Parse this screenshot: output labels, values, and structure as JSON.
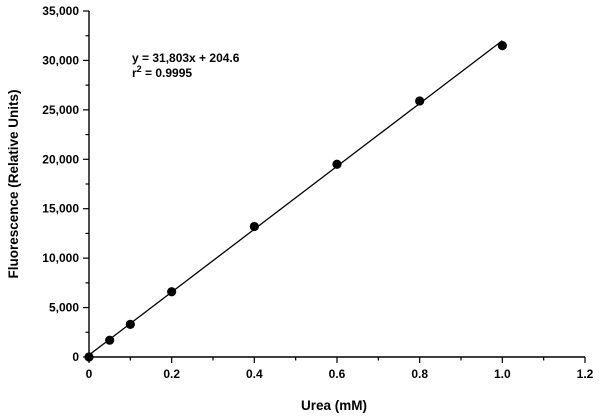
{
  "chart_data": {
    "type": "scatter",
    "title": "",
    "xlabel": "Urea (mM)",
    "ylabel": "Fluorescence (Relative Units)",
    "xlim": [
      0,
      1.2
    ],
    "ylim": [
      0,
      35000
    ],
    "x_ticks": [
      0,
      0.2,
      0.4,
      0.6,
      0.8,
      1.0,
      1.2
    ],
    "x_tick_labels": [
      "0",
      "0.2",
      "0.4",
      "0.6",
      "0.8",
      "1.0",
      "1.2"
    ],
    "y_ticks": [
      0,
      5000,
      10000,
      15000,
      20000,
      25000,
      30000,
      35000
    ],
    "y_tick_labels": [
      "0",
      "5,000",
      "10,000",
      "15,000",
      "20,000",
      "25,000",
      "30,000",
      "35,000"
    ],
    "grid": false,
    "series": [
      {
        "x": [
          0,
          0.05,
          0.1,
          0.2,
          0.4,
          0.6,
          0.8,
          1.0
        ],
        "y": [
          0,
          1700,
          3300,
          6600,
          13200,
          19500,
          25900,
          31500
        ]
      }
    ],
    "fit": {
      "slope": 31803,
      "intercept": 204.6,
      "x_range": [
        0,
        1.0
      ],
      "equation_text": "y = 31,803x + 204.6",
      "r2_prefix": "r",
      "r2_sup": "2",
      "r2_value": " = 0.9995"
    }
  }
}
